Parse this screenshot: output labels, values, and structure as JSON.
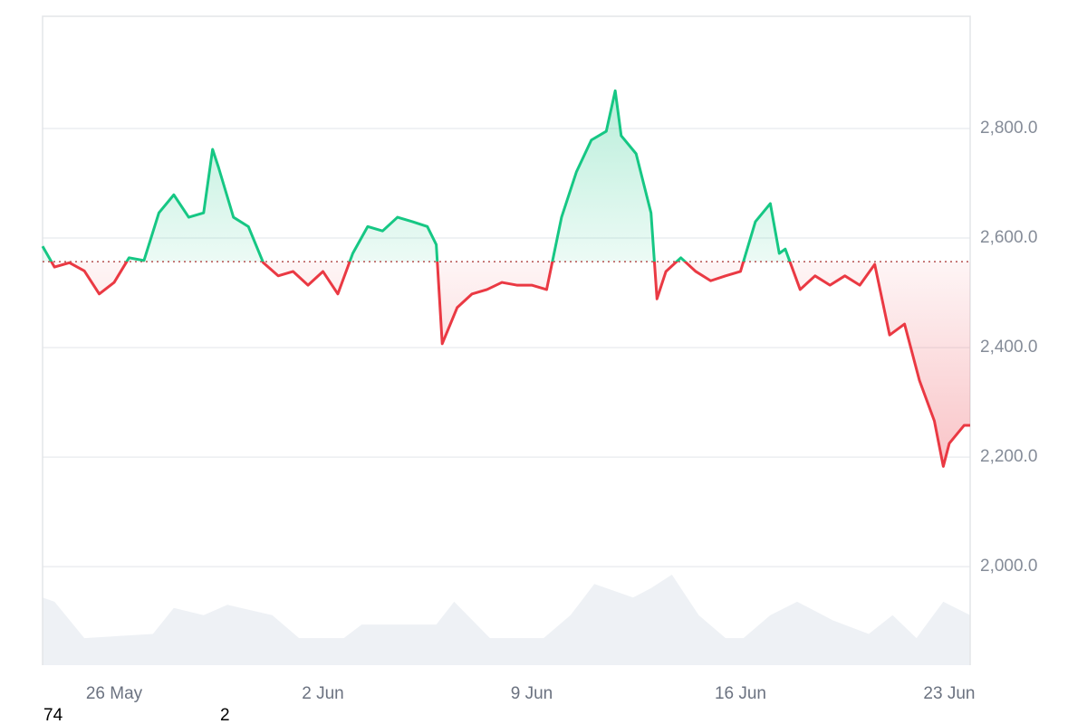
{
  "chart_data": {
    "type": "line",
    "xlim": [
      -2.4,
      28.7
    ],
    "xticks": [
      {
        "value": 0,
        "label": "26 May"
      },
      {
        "value": 7,
        "label": "2 Jun"
      },
      {
        "value": 14,
        "label": "9 Jun"
      },
      {
        "value": 21,
        "label": "16 Jun"
      },
      {
        "value": 28,
        "label": "23 Jun"
      }
    ],
    "ylim": [
      1820,
      3005
    ],
    "yticks": [
      {
        "value": 2000,
        "label": "2,000.0"
      },
      {
        "value": 2200,
        "label": "2,200.0"
      },
      {
        "value": 2400,
        "label": "2,400.0"
      },
      {
        "value": 2600,
        "label": "2,600.0"
      },
      {
        "value": 2800,
        "label": "2,800.0"
      }
    ],
    "grid": true,
    "baseline": 2557,
    "baseline_color": "#b5504f",
    "series": [
      {
        "color": "#16c784",
        "down_color": "#ea3943",
        "x": [
          -2.4,
          -2,
          -1.5,
          -1,
          -0.5,
          0,
          0.5,
          1,
          1.5,
          2,
          2.5,
          3,
          3.3,
          3.5,
          4,
          4.5,
          5,
          5.5,
          6,
          6.5,
          7,
          7.5,
          8,
          8.5,
          9,
          9.5,
          10,
          10.5,
          10.8,
          11,
          11.5,
          12,
          12.5,
          13,
          13.5,
          14,
          14.5,
          15,
          15.5,
          16,
          16.5,
          16.8,
          17,
          17.5,
          18,
          18.2,
          18.5,
          19,
          19.5,
          20,
          20.5,
          21,
          21.5,
          22,
          22.3,
          22.5,
          23,
          23.5,
          24,
          24.5,
          25,
          25.5,
          26,
          26.5,
          27,
          27.5,
          27.8,
          28,
          28.5,
          28.7
        ],
        "values": [
          2585,
          2547,
          2555,
          2540,
          2498,
          2519,
          2564,
          2559,
          2646,
          2679,
          2638,
          2646,
          2762,
          2729,
          2638,
          2621,
          2555,
          2531,
          2539,
          2514,
          2539,
          2498,
          2572,
          2621,
          2613,
          2638,
          2630,
          2621,
          2588,
          2407,
          2473,
          2498,
          2506,
          2519,
          2514,
          2514,
          2506,
          2638,
          2721,
          2779,
          2795,
          2869,
          2787,
          2754,
          2646,
          2489,
          2539,
          2564,
          2539,
          2522,
          2531,
          2539,
          2630,
          2663,
          2572,
          2580,
          2506,
          2531,
          2514,
          2531,
          2514,
          2552,
          2423,
          2443,
          2340,
          2266,
          2183,
          2225,
          2258,
          2258
        ]
      }
    ],
    "volume": {
      "color": "#eef1f5",
      "vlim": [
        0,
        100
      ],
      "x": [
        -2.4,
        -2,
        -1,
        1.3,
        2,
        3,
        3.8,
        5.3,
        6.2,
        7.7,
        8.3,
        10.8,
        11.4,
        12.6,
        14.4,
        15.3,
        16.1,
        17.4,
        18,
        18.7,
        19.6,
        20.5,
        21.1,
        22,
        22.9,
        24.1,
        25.3,
        26.1,
        26.9,
        27.8,
        28.7
      ],
      "values": [
        65,
        61,
        26,
        30,
        55,
        48,
        58,
        48,
        26,
        26,
        39,
        39,
        61,
        26,
        26,
        48,
        78,
        65,
        74,
        87,
        48,
        26,
        26,
        48,
        61,
        43,
        30,
        48,
        26,
        61,
        48
      ]
    },
    "annotations": [
      "74",
      "2"
    ]
  }
}
